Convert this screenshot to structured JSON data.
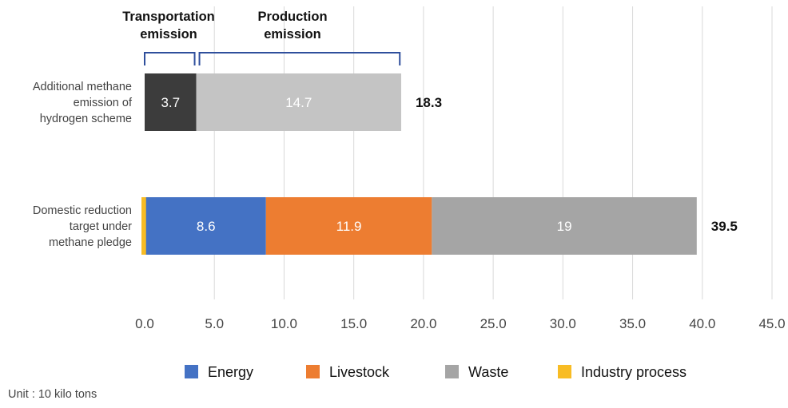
{
  "chart_data": {
    "type": "bar",
    "orientation": "horizontal",
    "stacked": true,
    "categories": [
      "Additional methane emission of hydrogen scheme",
      "Domestic reduction target under methane pledge"
    ],
    "category_lines": [
      [
        "Additional methane",
        "emission of",
        "hydrogen scheme"
      ],
      [
        "Domestic reduction",
        "target under",
        "methane pledge"
      ]
    ],
    "bars": [
      {
        "segments": [
          {
            "series": "Transportation emission",
            "value": 3.7,
            "label": "3.7",
            "color": "#3c3c3c"
          },
          {
            "series": "Production emission",
            "value": 14.7,
            "label": "14.7",
            "color": "#c4c4c4"
          }
        ],
        "total_label": "18.3"
      },
      {
        "segments": [
          {
            "series": "Industry process",
            "value": 0.1,
            "label": "",
            "color": "#f8bc24"
          },
          {
            "series": "Energy",
            "value": 8.6,
            "label": "8.6",
            "color": "#4472c4"
          },
          {
            "series": "Livestock",
            "value": 11.9,
            "label": "11.9",
            "color": "#ed7d31"
          },
          {
            "series": "Waste",
            "value": 19,
            "label": "19",
            "color": "#a5a5a5"
          }
        ],
        "total_label": "39.5"
      }
    ],
    "xlim": [
      0,
      45
    ],
    "xticks": [
      "0.0",
      "5.0",
      "10.0",
      "15.0",
      "20.0",
      "25.0",
      "30.0",
      "35.0",
      "40.0",
      "45.0"
    ],
    "tick_values": [
      0,
      5,
      10,
      15,
      20,
      25,
      30,
      35,
      40,
      45
    ],
    "grid": true,
    "annotations": [
      {
        "text": "Transportation emission",
        "lines": [
          "Transportation",
          "emission"
        ],
        "from": 0,
        "to": 3.7
      },
      {
        "text": "Production emission",
        "lines": [
          "Production",
          "emission"
        ],
        "from": 3.7,
        "to": 18.3
      }
    ],
    "legend": {
      "placement": "bottom",
      "entries": [
        {
          "name": "Energy",
          "color": "#4472c4"
        },
        {
          "name": "Livestock",
          "color": "#ed7d31"
        },
        {
          "name": "Waste",
          "color": "#a5a5a5"
        },
        {
          "name": "Industry process",
          "color": "#f8bc24"
        }
      ]
    },
    "unit_note": "Unit : 10 kilo tons"
  },
  "colors": {
    "bracket": "#2f4f9c",
    "grid": "#d9d9d9",
    "text": "#444444",
    "bold_text": "#111111"
  }
}
